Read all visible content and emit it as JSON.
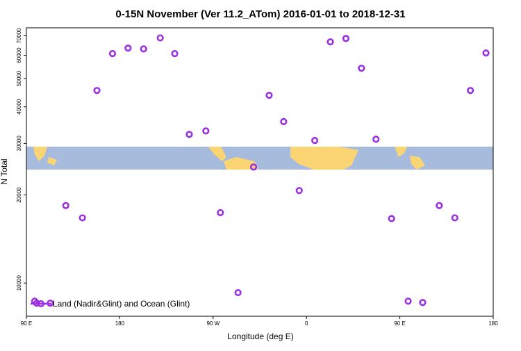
{
  "chart_data": {
    "type": "scatter",
    "title": "0-15N November (Ver 11.2_ATom)   2016-01-01 to 2018-12-31",
    "xlabel": "Longitude (deg E)",
    "ylabel": "N Total",
    "log_y": true,
    "legend_position": "bottom left",
    "xlim": [
      90,
      540
    ],
    "xticks": [
      {
        "value": 90,
        "label": "90 E"
      },
      180,
      {
        "value": 270,
        "label": "90 W"
      },
      {
        "value": 360,
        "label": "0"
      },
      {
        "value": 450,
        "label": "90 E"
      },
      {
        "value": 540,
        "label": "180"
      }
    ],
    "ylim": [
      7700,
      74500
    ],
    "yticks": [
      10000,
      20000,
      30000,
      40000,
      50000,
      60000,
      70000
    ],
    "series": [
      {
        "name": "Land (Nadir&Glint) and Ocean (Glint)",
        "color": "#9b30e0",
        "x": [
          98,
          100,
          113,
          128,
          144,
          158,
          173,
          188,
          203,
          219,
          233,
          247,
          263,
          277,
          294,
          309,
          324,
          338,
          353,
          368,
          383,
          398,
          413,
          427,
          442,
          458,
          472,
          488,
          503,
          518,
          533
        ],
        "values": [
          8670,
          8530,
          8530,
          18400,
          16700,
          45500,
          60800,
          63500,
          63100,
          68800,
          60800,
          32200,
          33100,
          17400,
          9270,
          24900,
          43800,
          35600,
          20700,
          30700,
          66700,
          68500,
          54200,
          31000,
          16600,
          8670,
          8580,
          18400,
          16700,
          45500,
          61100
        ]
      }
    ]
  }
}
